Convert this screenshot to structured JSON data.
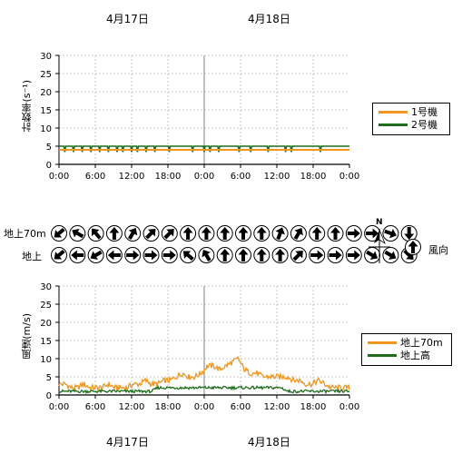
{
  "dates": {
    "day1": "4月17日",
    "day2": "4月18日"
  },
  "count_chart": {
    "ylabel": "計数率(s⁻¹)",
    "yticks": [
      "0",
      "5",
      "10",
      "15",
      "20",
      "25",
      "30"
    ],
    "xticks": [
      "0:00",
      "6:00",
      "12:00",
      "18:00",
      "0:00",
      "6:00",
      "12:00",
      "18:00",
      "0:00"
    ],
    "legend": [
      {
        "name": "1号機",
        "color": "#f0961e"
      },
      {
        "name": "2号機",
        "color": "#1e6e1e"
      }
    ]
  },
  "wind_dir": {
    "row1_label": "地上70m",
    "row2_label": "地上",
    "north_label": "N",
    "legend_label": "風向"
  },
  "wind_chart": {
    "ylabel": "風速(m/s)",
    "yticks": [
      "0",
      "5",
      "10",
      "15",
      "20",
      "25",
      "30"
    ],
    "xticks": [
      "0:00",
      "6:00",
      "12:00",
      "18:00",
      "0:00",
      "6:00",
      "12:00",
      "18:00",
      "0:00"
    ],
    "legend": [
      {
        "name": "地上70m",
        "color": "#f0961e"
      },
      {
        "name": "地上高",
        "color": "#1e6e1e"
      }
    ]
  },
  "chart_data": [
    {
      "type": "line",
      "ylabel": "計数率(s⁻¹)",
      "ylim": [
        0,
        30
      ],
      "x_range": [
        "4/17 0:00",
        "4/19 0:00"
      ],
      "series": [
        {
          "name": "1号機",
          "approx_level": 4
        },
        {
          "name": "2号機",
          "approx_level": 5
        }
      ]
    },
    {
      "type": "line",
      "ylabel": "風速(m/s)",
      "ylim": [
        0,
        30
      ],
      "x_range": [
        "4/17 0:00",
        "4/19 0:00"
      ],
      "series": [
        {
          "name": "地上70m",
          "hourly": [
            3,
            3,
            2,
            2,
            3,
            2,
            2,
            2,
            3,
            2,
            2,
            2,
            3,
            3,
            4,
            3,
            3,
            4,
            4,
            5,
            6,
            5,
            5,
            6,
            8,
            8,
            7,
            8,
            9,
            10,
            7,
            6,
            6,
            5,
            5,
            5,
            5,
            5,
            4,
            4,
            3,
            3,
            4,
            3,
            2,
            2,
            2,
            2
          ]
        },
        {
          "name": "地上高",
          "hourly": [
            1,
            1,
            1,
            1,
            1,
            1,
            1,
            1,
            1,
            1,
            1,
            1,
            1,
            1,
            1,
            1,
            2,
            2,
            2,
            2,
            2,
            2,
            2,
            2,
            2,
            2,
            2,
            2,
            2,
            2,
            2,
            2,
            2,
            2,
            2,
            2,
            2,
            1,
            1,
            1,
            1,
            1,
            1,
            1,
            1,
            1,
            1,
            1
          ]
        }
      ]
    }
  ],
  "wind_dirs": {
    "row1": [
      230,
      300,
      320,
      0,
      30,
      45,
      45,
      0,
      0,
      0,
      0,
      0,
      20,
      30,
      0,
      0,
      90,
      90,
      110,
      180
    ],
    "row2": [
      230,
      270,
      240,
      270,
      90,
      90,
      90,
      310,
      330,
      0,
      0,
      0,
      0,
      45,
      90,
      90,
      90,
      120,
      120,
      135
    ]
  }
}
